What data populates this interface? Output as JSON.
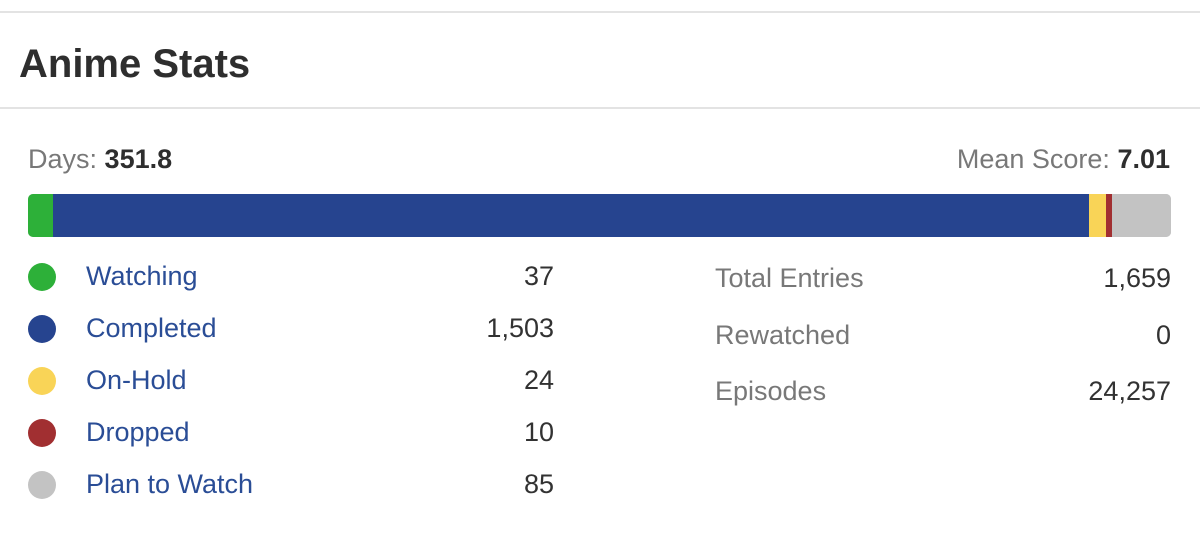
{
  "title": "Anime Stats",
  "days": {
    "label": "Days:",
    "value": "351.8"
  },
  "mean_score": {
    "label": "Mean Score:",
    "value": "7.01"
  },
  "status_bar": [
    {
      "name": "Watching",
      "count": 37,
      "color": "#2db039"
    },
    {
      "name": "Completed",
      "count": 1503,
      "color": "#26448f"
    },
    {
      "name": "On-Hold",
      "count": 24,
      "color": "#f9d457"
    },
    {
      "name": "Dropped",
      "count": 10,
      "color": "#a12f31"
    },
    {
      "name": "Plan to Watch",
      "count": 85,
      "color": "#c3c3c3"
    }
  ],
  "legend": [
    {
      "label": "Watching",
      "count": "37",
      "color": "#2db039"
    },
    {
      "label": "Completed",
      "count": "1,503",
      "color": "#26448f"
    },
    {
      "label": "On-Hold",
      "count": "24",
      "color": "#f9d457"
    },
    {
      "label": "Dropped",
      "count": "10",
      "color": "#a12f31"
    },
    {
      "label": "Plan to Watch",
      "count": "85",
      "color": "#c3c3c3"
    }
  ],
  "totals": [
    {
      "label": "Total Entries",
      "value": "1,659"
    },
    {
      "label": "Rewatched",
      "value": "0"
    },
    {
      "label": "Episodes",
      "value": "24,257"
    }
  ]
}
